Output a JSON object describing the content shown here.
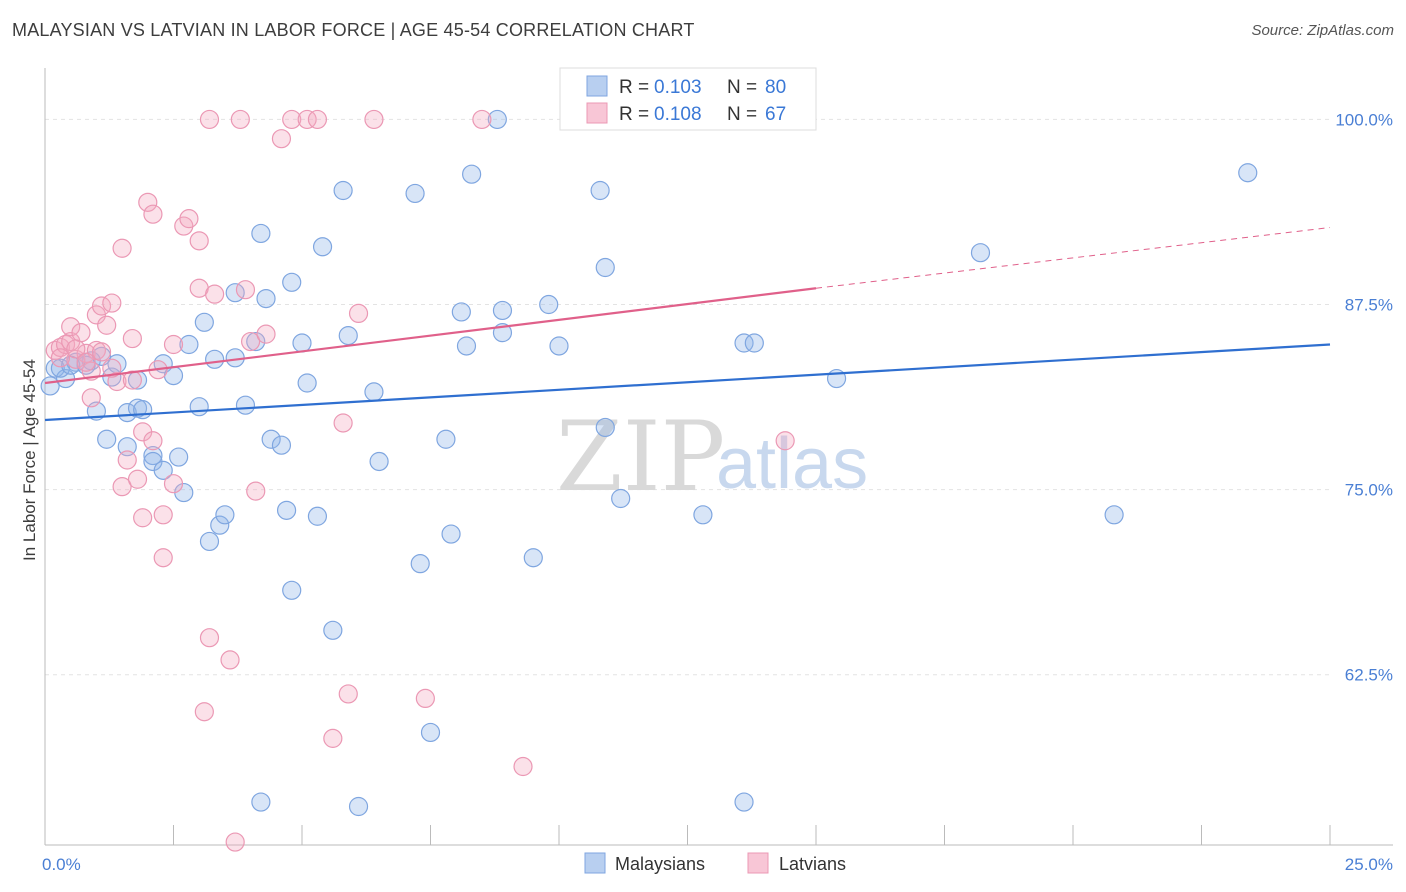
{
  "title": "MALAYSIAN VS LATVIAN IN LABOR FORCE | AGE 45-54 CORRELATION CHART",
  "source": "Source: ZipAtlas.com",
  "watermark": {
    "zip": "ZIP",
    "atlas": "atlas"
  },
  "chart_data": {
    "type": "scatter",
    "xlabel": "",
    "ylabel": "In Labor Force | Age 45-54",
    "xlim": [
      0,
      25
    ],
    "ylim": [
      51,
      103
    ],
    "x_tick_labels": [
      "0.0%",
      "25.0%"
    ],
    "y_ticks": [
      62.5,
      75.0,
      87.5,
      100.0
    ],
    "y_tick_labels": [
      "62.5%",
      "75.0%",
      "87.5%",
      "100.0%"
    ],
    "grid": true,
    "legend_position": "top-center",
    "legend": [
      {
        "r_label": "R =",
        "r_value": "0.103",
        "n_label": "N =",
        "n_value": "80"
      },
      {
        "r_label": "R =",
        "r_value": "0.108",
        "n_label": "N =",
        "n_value": "67"
      }
    ],
    "series": [
      {
        "name": "Malaysians",
        "color": "#8fb4e8",
        "line_color": "#2f6fd0",
        "trend": {
          "x0": 0,
          "y0": 79.7,
          "x1": 25,
          "y1": 84.8
        },
        "points": [
          [
            0.2,
            83.2
          ],
          [
            0.4,
            82.5
          ],
          [
            0.6,
            83.6
          ],
          [
            0.9,
            83.7
          ],
          [
            1.1,
            84.0
          ],
          [
            1.3,
            82.6
          ],
          [
            0.8,
            83.4
          ],
          [
            1.0,
            80.3
          ],
          [
            1.2,
            78.4
          ],
          [
            1.6,
            80.2
          ],
          [
            1.6,
            77.9
          ],
          [
            1.8,
            80.5
          ],
          [
            1.8,
            82.4
          ],
          [
            1.9,
            80.4
          ],
          [
            2.1,
            77.3
          ],
          [
            2.1,
            76.9
          ],
          [
            2.3,
            76.3
          ],
          [
            2.3,
            83.5
          ],
          [
            2.5,
            82.7
          ],
          [
            2.6,
            77.2
          ],
          [
            2.7,
            74.8
          ],
          [
            2.8,
            84.8
          ],
          [
            3.0,
            80.6
          ],
          [
            3.1,
            86.3
          ],
          [
            3.2,
            71.5
          ],
          [
            3.3,
            83.8
          ],
          [
            3.4,
            72.6
          ],
          [
            3.5,
            73.3
          ],
          [
            3.7,
            83.9
          ],
          [
            3.7,
            88.3
          ],
          [
            3.9,
            80.7
          ],
          [
            4.1,
            85.0
          ],
          [
            4.2,
            92.3
          ],
          [
            4.3,
            87.9
          ],
          [
            4.4,
            78.4
          ],
          [
            4.6,
            78.0
          ],
          [
            4.7,
            73.6
          ],
          [
            4.8,
            68.2
          ],
          [
            4.8,
            89.0
          ],
          [
            5.0,
            84.9
          ],
          [
            5.1,
            82.2
          ],
          [
            5.3,
            73.2
          ],
          [
            5.4,
            91.4
          ],
          [
            5.6,
            65.5
          ],
          [
            5.8,
            95.2
          ],
          [
            5.9,
            85.4
          ],
          [
            6.1,
            53.6
          ],
          [
            6.4,
            81.6
          ],
          [
            6.5,
            76.9
          ],
          [
            7.2,
            95.0
          ],
          [
            7.3,
            70.0
          ],
          [
            7.5,
            58.6
          ],
          [
            7.8,
            78.4
          ],
          [
            7.9,
            72.0
          ],
          [
            8.1,
            87.0
          ],
          [
            8.2,
            84.7
          ],
          [
            8.3,
            96.3
          ],
          [
            8.9,
            85.6
          ],
          [
            8.9,
            87.1
          ],
          [
            8.8,
            100.0
          ],
          [
            9.5,
            70.4
          ],
          [
            9.8,
            87.5
          ],
          [
            10.0,
            84.7
          ],
          [
            10.8,
            95.2
          ],
          [
            10.9,
            90.0
          ],
          [
            10.9,
            79.2
          ],
          [
            11.2,
            74.4
          ],
          [
            12.8,
            73.3
          ],
          [
            13.6,
            84.9
          ],
          [
            13.8,
            84.9
          ],
          [
            15.4,
            82.5
          ],
          [
            18.2,
            91.0
          ],
          [
            20.8,
            73.3
          ],
          [
            23.4,
            96.4
          ],
          [
            4.2,
            53.9
          ],
          [
            13.6,
            53.9
          ],
          [
            0.3,
            83.2
          ],
          [
            0.5,
            83.4
          ],
          [
            1.4,
            83.5
          ],
          [
            0.1,
            82.0
          ]
        ]
      },
      {
        "name": "Latvians",
        "color": "#f4a8c0",
        "line_color": "#e0608a",
        "trend": {
          "x0": 0,
          "y0": 82.2,
          "x1": 15,
          "y1": 88.6
        },
        "trend_dashed": {
          "x0": 15,
          "y0": 88.6,
          "x1": 25,
          "y1": 92.7
        },
        "points": [
          [
            0.2,
            84.4
          ],
          [
            0.3,
            84.6
          ],
          [
            0.4,
            84.8
          ],
          [
            0.5,
            85.0
          ],
          [
            0.5,
            86.0
          ],
          [
            0.6,
            83.8
          ],
          [
            0.7,
            85.6
          ],
          [
            0.8,
            84.2
          ],
          [
            0.9,
            83.0
          ],
          [
            0.9,
            81.2
          ],
          [
            1.0,
            84.4
          ],
          [
            1.0,
            86.8
          ],
          [
            1.1,
            87.4
          ],
          [
            1.2,
            86.1
          ],
          [
            1.3,
            87.6
          ],
          [
            1.4,
            82.3
          ],
          [
            1.5,
            91.3
          ],
          [
            1.5,
            75.2
          ],
          [
            1.6,
            77.0
          ],
          [
            1.7,
            82.4
          ],
          [
            1.7,
            85.2
          ],
          [
            1.8,
            75.7
          ],
          [
            1.9,
            73.1
          ],
          [
            1.9,
            78.9
          ],
          [
            2.0,
            94.4
          ],
          [
            2.1,
            93.6
          ],
          [
            2.1,
            78.3
          ],
          [
            2.2,
            83.1
          ],
          [
            2.3,
            73.3
          ],
          [
            2.3,
            70.4
          ],
          [
            2.5,
            75.4
          ],
          [
            2.5,
            84.8
          ],
          [
            2.7,
            92.8
          ],
          [
            2.8,
            93.3
          ],
          [
            3.0,
            91.8
          ],
          [
            3.0,
            88.6
          ],
          [
            3.1,
            60.0
          ],
          [
            3.2,
            100.0
          ],
          [
            3.2,
            65.0
          ],
          [
            3.3,
            88.2
          ],
          [
            3.6,
            63.5
          ],
          [
            3.8,
            100.0
          ],
          [
            3.9,
            88.5
          ],
          [
            4.0,
            85.0
          ],
          [
            4.1,
            74.9
          ],
          [
            4.3,
            85.5
          ],
          [
            4.6,
            98.7
          ],
          [
            4.8,
            100.0
          ],
          [
            5.1,
            100.0
          ],
          [
            5.3,
            100.0
          ],
          [
            5.6,
            58.2
          ],
          [
            5.8,
            79.5
          ],
          [
            5.9,
            61.2
          ],
          [
            6.1,
            86.9
          ],
          [
            6.4,
            100.0
          ],
          [
            7.4,
            60.9
          ],
          [
            8.5,
            100.0
          ],
          [
            9.3,
            56.3
          ],
          [
            10.4,
            100.0
          ],
          [
            13.0,
            100.0
          ],
          [
            14.4,
            78.3
          ],
          [
            3.7,
            51.2
          ],
          [
            0.6,
            84.5
          ],
          [
            1.1,
            84.3
          ],
          [
            0.3,
            83.9
          ],
          [
            0.8,
            83.6
          ],
          [
            1.3,
            83.2
          ]
        ]
      }
    ]
  }
}
